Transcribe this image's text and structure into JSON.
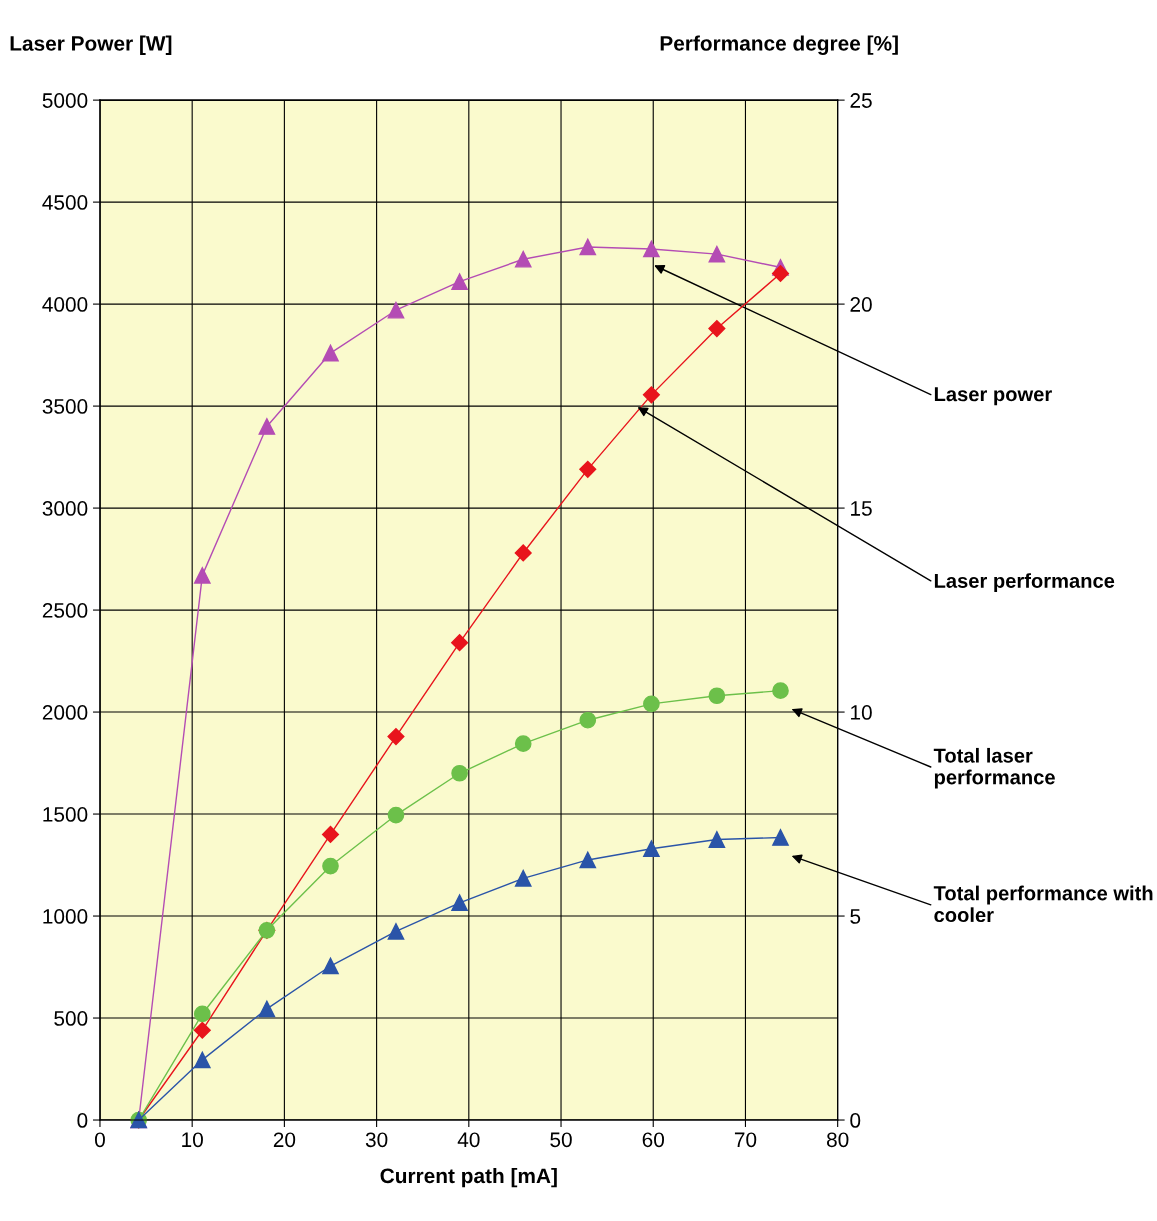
{
  "chart_data": {
    "type": "line",
    "xlabel": "Current path [mA]",
    "ylabel": "Laser Power [W]",
    "y2label": "Performance degree [%]",
    "x": [
      4.2,
      11.1,
      18.1,
      25.0,
      32.1,
      39.0,
      45.9,
      52.9,
      59.8,
      66.9,
      73.8
    ],
    "series": [
      {
        "name": "Laser power",
        "color": "#b44cb4",
        "marker": "triangle",
        "values": [
          0,
          2670,
          3400,
          3760,
          3970,
          4110,
          4220,
          4280,
          4270,
          4245,
          4180
        ]
      },
      {
        "name": "Laser performance",
        "color": "#e8141c",
        "marker": "diamond",
        "values": [
          0,
          440,
          930,
          1400,
          1880,
          2340,
          2780,
          3190,
          3555,
          3880,
          4150
        ]
      },
      {
        "name": "Total laser performance",
        "color": "#6cc04a",
        "marker": "circle",
        "values": [
          0,
          520,
          930,
          1245,
          1495,
          1700,
          1845,
          1960,
          2040,
          2080,
          2105
        ]
      },
      {
        "name": "Total performance with cooler",
        "color": "#2a54a8",
        "marker": "triangle",
        "values": [
          0,
          295,
          545,
          755,
          925,
          1065,
          1185,
          1275,
          1330,
          1375,
          1385
        ]
      }
    ],
    "xlim": [
      0,
      80
    ],
    "xticks": [
      0,
      10,
      20,
      30,
      40,
      50,
      60,
      70,
      80
    ],
    "ylim": [
      0,
      5000
    ],
    "yticks": [
      0,
      500,
      1000,
      1500,
      2000,
      2500,
      3000,
      3500,
      4000,
      4500,
      5000
    ],
    "y2lim": [
      0,
      25
    ],
    "y2ticks": [
      0,
      5,
      10,
      15,
      20,
      25
    ],
    "grid": true,
    "legend": false,
    "line_style": "solid"
  }
}
